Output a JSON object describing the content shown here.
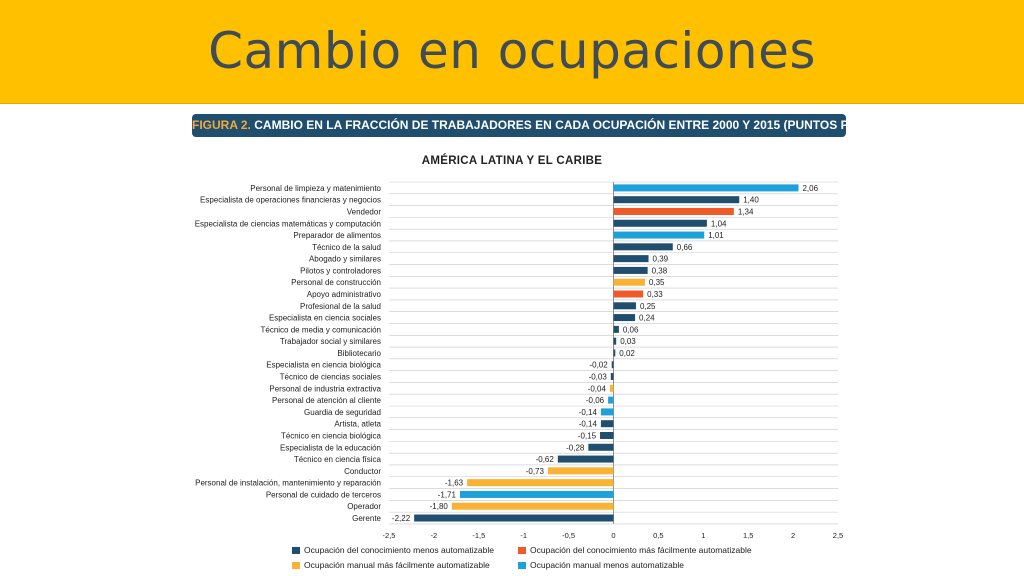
{
  "slide": {
    "title": "Cambio en ocupaciones",
    "figure_prefix": "FIGURA 2.",
    "figure_caption": "CAMBIO EN LA FRACCIÓN DE TRABAJADORES EN CADA OCUPACIÓN ENTRE 2000 Y 2015 (PUNTOS PORCENTUALES)"
  },
  "colors": {
    "banner": "#FFC000",
    "conocimiento_menos": "#1F4E6E",
    "conocimiento_mas": "#F05A28",
    "manual_mas": "#F9B233",
    "manual_menos": "#1DA1DB"
  },
  "chart_data": {
    "type": "bar",
    "orientation": "horizontal",
    "title": "AMÉRICA LATINA Y EL CARIBE",
    "xlim": [
      -2.5,
      2.5
    ],
    "xticks": [
      "-2,5",
      "-2",
      "-1,5",
      "-1",
      "-0,5",
      "0",
      "0,5",
      "1",
      "1,5",
      "2",
      "2,5"
    ],
    "grid": true,
    "legend_position": "bottom",
    "legend": [
      {
        "key": "conocimiento_menos",
        "label": "Ocupación del conocimiento menos automatizable"
      },
      {
        "key": "conocimiento_mas",
        "label": "Ocupación del conocimiento más fácilmente automatizable"
      },
      {
        "key": "manual_mas",
        "label": "Ocupación manual más fácilmente automatizable"
      },
      {
        "key": "manual_menos",
        "label": "Ocupación manual menos automatizable"
      }
    ],
    "bars": [
      {
        "label": "Personal de limpieza y matenimiento",
        "value": 2.06,
        "value_label": "2,06",
        "group": "manual_menos"
      },
      {
        "label": "Especialista de operaciones financieras y negocios",
        "value": 1.4,
        "value_label": "1,40",
        "group": "conocimiento_menos"
      },
      {
        "label": "Vendedor",
        "value": 1.34,
        "value_label": "1,34",
        "group": "conocimiento_mas"
      },
      {
        "label": "Especialista de ciencias matemáticas y computación",
        "value": 1.04,
        "value_label": "1,04",
        "group": "conocimiento_menos"
      },
      {
        "label": "Preparador de alimentos",
        "value": 1.01,
        "value_label": "1,01",
        "group": "manual_menos"
      },
      {
        "label": "Técnico de la salud",
        "value": 0.66,
        "value_label": "0,66",
        "group": "conocimiento_menos"
      },
      {
        "label": "Abogado y similares",
        "value": 0.39,
        "value_label": "0,39",
        "group": "conocimiento_menos"
      },
      {
        "label": "Pilotos y controladores",
        "value": 0.38,
        "value_label": "0,38",
        "group": "conocimiento_menos"
      },
      {
        "label": "Personal de construcción",
        "value": 0.35,
        "value_label": "0,35",
        "group": "manual_mas"
      },
      {
        "label": "Apoyo administrativo",
        "value": 0.33,
        "value_label": "0,33",
        "group": "conocimiento_mas"
      },
      {
        "label": "Profesional de la salud",
        "value": 0.25,
        "value_label": "0,25",
        "group": "conocimiento_menos"
      },
      {
        "label": "Especialista en ciencia sociales",
        "value": 0.24,
        "value_label": "0,24",
        "group": "conocimiento_menos"
      },
      {
        "label": "Técnico de media y comunicación",
        "value": 0.06,
        "value_label": "0,06",
        "group": "conocimiento_menos"
      },
      {
        "label": "Trabajador social y similares",
        "value": 0.03,
        "value_label": "0,03",
        "group": "conocimiento_menos"
      },
      {
        "label": "Bibliotecario",
        "value": 0.02,
        "value_label": "0,02",
        "group": "conocimiento_menos"
      },
      {
        "label": "Especialista en ciencia biológica",
        "value": -0.02,
        "value_label": "-0,02",
        "group": "conocimiento_menos"
      },
      {
        "label": "Técnico de ciencias sociales",
        "value": -0.03,
        "value_label": "-0,03",
        "group": "conocimiento_menos"
      },
      {
        "label": "Personal de industria extractiva",
        "value": -0.04,
        "value_label": "-0,04",
        "group": "manual_mas"
      },
      {
        "label": "Personal de atención al cliente",
        "value": -0.06,
        "value_label": "-0,06",
        "group": "manual_menos"
      },
      {
        "label": "Guardia de seguridad",
        "value": -0.14,
        "value_label": "-0,14",
        "group": "manual_menos"
      },
      {
        "label": "Artista, atleta",
        "value": -0.14,
        "value_label": "-0,14",
        "group": "conocimiento_menos"
      },
      {
        "label": "Técnico en ciencia biológica",
        "value": -0.15,
        "value_label": "-0,15",
        "group": "conocimiento_menos"
      },
      {
        "label": "Especialista de la educación",
        "value": -0.28,
        "value_label": "-0,28",
        "group": "conocimiento_menos"
      },
      {
        "label": "Técnico en ciencia física",
        "value": -0.62,
        "value_label": "-0,62",
        "group": "conocimiento_menos"
      },
      {
        "label": "Conductor",
        "value": -0.73,
        "value_label": "-0,73",
        "group": "manual_mas"
      },
      {
        "label": "Personal de instalación, mantenimiento y reparación",
        "value": -1.63,
        "value_label": "-1,63",
        "group": "manual_mas"
      },
      {
        "label": "Personal de cuidado de terceros",
        "value": -1.71,
        "value_label": "-1,71",
        "group": "manual_menos"
      },
      {
        "label": "Operador",
        "value": -1.8,
        "value_label": "-1,80",
        "group": "manual_mas"
      },
      {
        "label": "Gerente",
        "value": -2.22,
        "value_label": "-2,22",
        "group": "conocimiento_menos"
      }
    ]
  }
}
